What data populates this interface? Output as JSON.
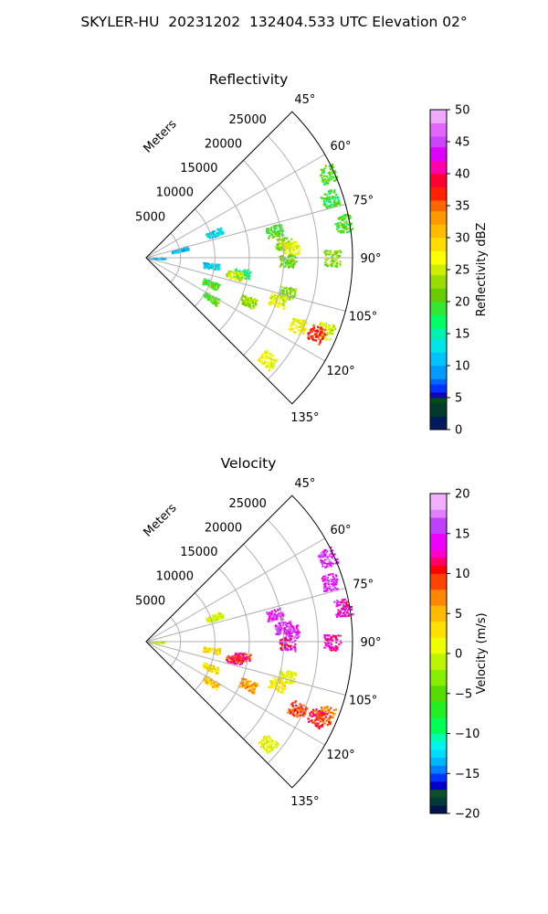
{
  "figure": {
    "title": "SKYLER-HU  20231202  132404.533 UTC Elevation 02°"
  },
  "chart_data": [
    {
      "type": "heatmap",
      "subtype": "polar-sector (radar PPI)",
      "title": "Reflectivity",
      "radial_label": "Meters",
      "azimuth_range_deg": [
        45,
        135
      ],
      "radial_range_m": [
        0,
        30000
      ],
      "azimuth_ticks": [
        "45°",
        "60°",
        "75°",
        "90°",
        "105°",
        "120°",
        "135°"
      ],
      "radial_ticks": [
        "5000",
        "10000",
        "15000",
        "20000",
        "25000"
      ],
      "grid": true,
      "colorbar": {
        "label": "Reflectivity dBZ",
        "range": [
          0,
          50
        ],
        "ticks": [
          "0",
          "5",
          "10",
          "15",
          "20",
          "25",
          "30",
          "35",
          "40",
          "45",
          "50"
        ]
      },
      "echoes": [
        {
          "azimuth_deg": 90,
          "range_m": 1500,
          "value": 10
        },
        {
          "azimuth_deg": 70,
          "range_m": 10500,
          "value": 12
        },
        {
          "azimuth_deg": 76,
          "range_m": 5000,
          "value": 10
        },
        {
          "azimuth_deg": 97,
          "range_m": 9500,
          "value": 12
        },
        {
          "azimuth_deg": 99,
          "range_m": 14000,
          "value": 17
        },
        {
          "azimuth_deg": 101,
          "range_m": 13000,
          "value": 25
        },
        {
          "azimuth_deg": 84,
          "range_m": 20000,
          "value": 22
        },
        {
          "azimuth_deg": 86,
          "range_m": 21000,
          "value": 27
        },
        {
          "azimuth_deg": 78,
          "range_m": 19000,
          "value": 20
        },
        {
          "azimuth_deg": 91,
          "range_m": 20500,
          "value": 21
        },
        {
          "azimuth_deg": 90,
          "range_m": 27000,
          "value": 22
        },
        {
          "azimuth_deg": 65,
          "range_m": 29000,
          "value": 20
        },
        {
          "azimuth_deg": 72,
          "range_m": 28000,
          "value": 19
        },
        {
          "azimuth_deg": 80,
          "range_m": 29000,
          "value": 20
        },
        {
          "azimuth_deg": 112,
          "range_m": 28000,
          "value": 25
        },
        {
          "azimuth_deg": 114,
          "range_m": 27000,
          "value": 37
        },
        {
          "azimuth_deg": 114,
          "range_m": 24000,
          "value": 27
        },
        {
          "azimuth_deg": 113,
          "range_m": 16000,
          "value": 23
        },
        {
          "azimuth_deg": 112,
          "range_m": 10000,
          "value": 20
        },
        {
          "azimuth_deg": 122,
          "range_m": 11000,
          "value": 20
        },
        {
          "azimuth_deg": 130,
          "range_m": 23000,
          "value": 27
        },
        {
          "azimuth_deg": 104,
          "range_m": 21000,
          "value": 22
        },
        {
          "azimuth_deg": 108,
          "range_m": 20000,
          "value": 26
        }
      ]
    },
    {
      "type": "heatmap",
      "subtype": "polar-sector (radar PPI)",
      "title": "Velocity",
      "radial_label": "Meters",
      "azimuth_range_deg": [
        45,
        135
      ],
      "radial_range_m": [
        0,
        30000
      ],
      "azimuth_ticks": [
        "45°",
        "60°",
        "75°",
        "90°",
        "105°",
        "120°",
        "135°"
      ],
      "radial_ticks": [
        "5000",
        "10000",
        "15000",
        "20000",
        "25000"
      ],
      "grid": true,
      "colorbar": {
        "label": "Velocity (m/s)",
        "range": [
          -20,
          20
        ],
        "ticks": [
          "−20",
          "−15",
          "−10",
          "−5",
          "0",
          "5",
          "10",
          "15",
          "20"
        ]
      },
      "echoes": [
        {
          "azimuth_deg": 90,
          "range_m": 1500,
          "value": 0
        },
        {
          "azimuth_deg": 70,
          "range_m": 10500,
          "value": 0
        },
        {
          "azimuth_deg": 97,
          "range_m": 9500,
          "value": 3
        },
        {
          "azimuth_deg": 99,
          "range_m": 14000,
          "value": 11
        },
        {
          "azimuth_deg": 101,
          "range_m": 13000,
          "value": 10
        },
        {
          "azimuth_deg": 84,
          "range_m": 20000,
          "value": 15
        },
        {
          "azimuth_deg": 86,
          "range_m": 21000,
          "value": 15
        },
        {
          "azimuth_deg": 78,
          "range_m": 19000,
          "value": 15
        },
        {
          "azimuth_deg": 91,
          "range_m": 20500,
          "value": 13
        },
        {
          "azimuth_deg": 90,
          "range_m": 27000,
          "value": 13
        },
        {
          "azimuth_deg": 65,
          "range_m": 29000,
          "value": 15
        },
        {
          "azimuth_deg": 72,
          "range_m": 28000,
          "value": 15
        },
        {
          "azimuth_deg": 80,
          "range_m": 29000,
          "value": 13
        },
        {
          "azimuth_deg": 112,
          "range_m": 28000,
          "value": 8
        },
        {
          "azimuth_deg": 114,
          "range_m": 27000,
          "value": 10
        },
        {
          "azimuth_deg": 114,
          "range_m": 24000,
          "value": 9
        },
        {
          "azimuth_deg": 113,
          "range_m": 16000,
          "value": 6
        },
        {
          "azimuth_deg": 112,
          "range_m": 10000,
          "value": 3
        },
        {
          "azimuth_deg": 122,
          "range_m": 11000,
          "value": 4
        },
        {
          "azimuth_deg": 130,
          "range_m": 23000,
          "value": 1
        },
        {
          "azimuth_deg": 104,
          "range_m": 21000,
          "value": 1
        },
        {
          "azimuth_deg": 108,
          "range_m": 20000,
          "value": 2
        }
      ]
    }
  ]
}
